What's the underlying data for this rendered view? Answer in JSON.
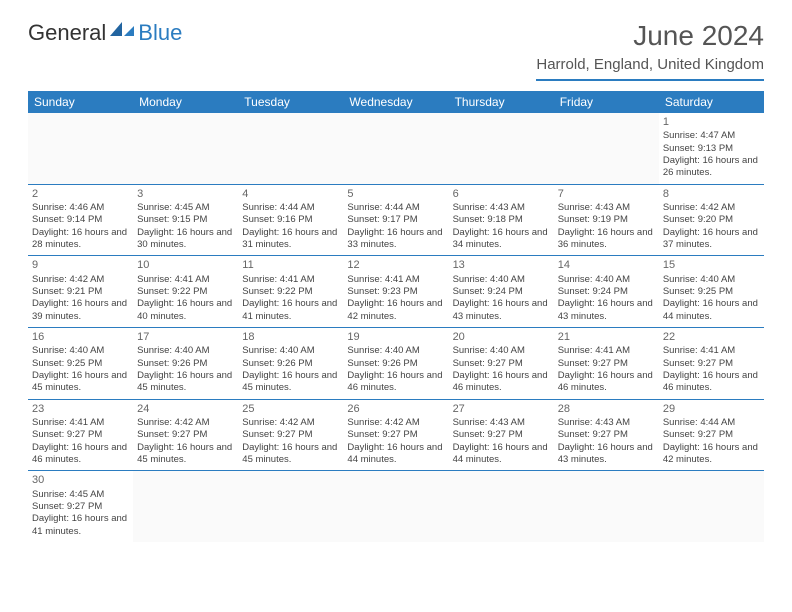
{
  "logo": {
    "part1": "General",
    "part2": "Blue"
  },
  "title": "June 2024",
  "location": "Harrold, England, United Kingdom",
  "colors": {
    "accent": "#2b7cc0",
    "text": "#333333",
    "bg": "#ffffff"
  },
  "weekdays": [
    "Sunday",
    "Monday",
    "Tuesday",
    "Wednesday",
    "Thursday",
    "Friday",
    "Saturday"
  ],
  "weeks": [
    [
      null,
      null,
      null,
      null,
      null,
      null,
      {
        "n": "1",
        "sr": "Sunrise: 4:47 AM",
        "ss": "Sunset: 9:13 PM",
        "dl": "Daylight: 16 hours and 26 minutes."
      }
    ],
    [
      {
        "n": "2",
        "sr": "Sunrise: 4:46 AM",
        "ss": "Sunset: 9:14 PM",
        "dl": "Daylight: 16 hours and 28 minutes."
      },
      {
        "n": "3",
        "sr": "Sunrise: 4:45 AM",
        "ss": "Sunset: 9:15 PM",
        "dl": "Daylight: 16 hours and 30 minutes."
      },
      {
        "n": "4",
        "sr": "Sunrise: 4:44 AM",
        "ss": "Sunset: 9:16 PM",
        "dl": "Daylight: 16 hours and 31 minutes."
      },
      {
        "n": "5",
        "sr": "Sunrise: 4:44 AM",
        "ss": "Sunset: 9:17 PM",
        "dl": "Daylight: 16 hours and 33 minutes."
      },
      {
        "n": "6",
        "sr": "Sunrise: 4:43 AM",
        "ss": "Sunset: 9:18 PM",
        "dl": "Daylight: 16 hours and 34 minutes."
      },
      {
        "n": "7",
        "sr": "Sunrise: 4:43 AM",
        "ss": "Sunset: 9:19 PM",
        "dl": "Daylight: 16 hours and 36 minutes."
      },
      {
        "n": "8",
        "sr": "Sunrise: 4:42 AM",
        "ss": "Sunset: 9:20 PM",
        "dl": "Daylight: 16 hours and 37 minutes."
      }
    ],
    [
      {
        "n": "9",
        "sr": "Sunrise: 4:42 AM",
        "ss": "Sunset: 9:21 PM",
        "dl": "Daylight: 16 hours and 39 minutes."
      },
      {
        "n": "10",
        "sr": "Sunrise: 4:41 AM",
        "ss": "Sunset: 9:22 PM",
        "dl": "Daylight: 16 hours and 40 minutes."
      },
      {
        "n": "11",
        "sr": "Sunrise: 4:41 AM",
        "ss": "Sunset: 9:22 PM",
        "dl": "Daylight: 16 hours and 41 minutes."
      },
      {
        "n": "12",
        "sr": "Sunrise: 4:41 AM",
        "ss": "Sunset: 9:23 PM",
        "dl": "Daylight: 16 hours and 42 minutes."
      },
      {
        "n": "13",
        "sr": "Sunrise: 4:40 AM",
        "ss": "Sunset: 9:24 PM",
        "dl": "Daylight: 16 hours and 43 minutes."
      },
      {
        "n": "14",
        "sr": "Sunrise: 4:40 AM",
        "ss": "Sunset: 9:24 PM",
        "dl": "Daylight: 16 hours and 43 minutes."
      },
      {
        "n": "15",
        "sr": "Sunrise: 4:40 AM",
        "ss": "Sunset: 9:25 PM",
        "dl": "Daylight: 16 hours and 44 minutes."
      }
    ],
    [
      {
        "n": "16",
        "sr": "Sunrise: 4:40 AM",
        "ss": "Sunset: 9:25 PM",
        "dl": "Daylight: 16 hours and 45 minutes."
      },
      {
        "n": "17",
        "sr": "Sunrise: 4:40 AM",
        "ss": "Sunset: 9:26 PM",
        "dl": "Daylight: 16 hours and 45 minutes."
      },
      {
        "n": "18",
        "sr": "Sunrise: 4:40 AM",
        "ss": "Sunset: 9:26 PM",
        "dl": "Daylight: 16 hours and 45 minutes."
      },
      {
        "n": "19",
        "sr": "Sunrise: 4:40 AM",
        "ss": "Sunset: 9:26 PM",
        "dl": "Daylight: 16 hours and 46 minutes."
      },
      {
        "n": "20",
        "sr": "Sunrise: 4:40 AM",
        "ss": "Sunset: 9:27 PM",
        "dl": "Daylight: 16 hours and 46 minutes."
      },
      {
        "n": "21",
        "sr": "Sunrise: 4:41 AM",
        "ss": "Sunset: 9:27 PM",
        "dl": "Daylight: 16 hours and 46 minutes."
      },
      {
        "n": "22",
        "sr": "Sunrise: 4:41 AM",
        "ss": "Sunset: 9:27 PM",
        "dl": "Daylight: 16 hours and 46 minutes."
      }
    ],
    [
      {
        "n": "23",
        "sr": "Sunrise: 4:41 AM",
        "ss": "Sunset: 9:27 PM",
        "dl": "Daylight: 16 hours and 46 minutes."
      },
      {
        "n": "24",
        "sr": "Sunrise: 4:42 AM",
        "ss": "Sunset: 9:27 PM",
        "dl": "Daylight: 16 hours and 45 minutes."
      },
      {
        "n": "25",
        "sr": "Sunrise: 4:42 AM",
        "ss": "Sunset: 9:27 PM",
        "dl": "Daylight: 16 hours and 45 minutes."
      },
      {
        "n": "26",
        "sr": "Sunrise: 4:42 AM",
        "ss": "Sunset: 9:27 PM",
        "dl": "Daylight: 16 hours and 44 minutes."
      },
      {
        "n": "27",
        "sr": "Sunrise: 4:43 AM",
        "ss": "Sunset: 9:27 PM",
        "dl": "Daylight: 16 hours and 44 minutes."
      },
      {
        "n": "28",
        "sr": "Sunrise: 4:43 AM",
        "ss": "Sunset: 9:27 PM",
        "dl": "Daylight: 16 hours and 43 minutes."
      },
      {
        "n": "29",
        "sr": "Sunrise: 4:44 AM",
        "ss": "Sunset: 9:27 PM",
        "dl": "Daylight: 16 hours and 42 minutes."
      }
    ],
    [
      {
        "n": "30",
        "sr": "Sunrise: 4:45 AM",
        "ss": "Sunset: 9:27 PM",
        "dl": "Daylight: 16 hours and 41 minutes."
      },
      null,
      null,
      null,
      null,
      null,
      null
    ]
  ]
}
